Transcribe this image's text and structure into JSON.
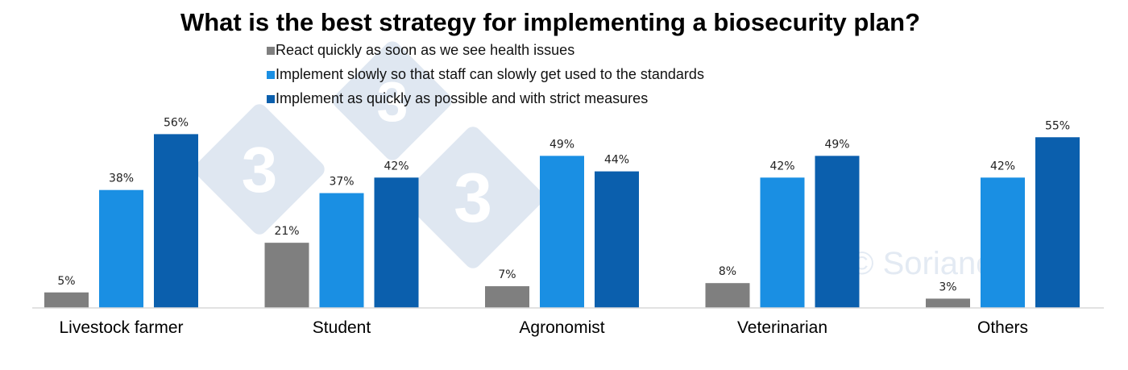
{
  "colors": {
    "react": "#7f7f7f",
    "slowly": "#1a8fe3",
    "quickly": "#0b5fad",
    "axis": "#d9d9d9",
    "watermark": "#dfe7f1"
  },
  "chart_data": {
    "type": "bar",
    "title": "What is the best strategy for implementing a biosecurity plan?",
    "xlabel": "",
    "ylabel": "",
    "ylim": [
      0,
      60
    ],
    "grid": false,
    "legend_position": "top",
    "categories": [
      "Livestock farmer",
      "Student",
      "Agronomist",
      "Veterinarian",
      "Others"
    ],
    "series": [
      {
        "name": "React quickly as soon as we see health issues",
        "values": [
          5,
          21,
          7,
          8,
          3
        ],
        "labels": [
          "5%",
          "21%",
          "7%",
          "8%",
          "3%"
        ]
      },
      {
        "name": "Implement slowly so that staff can slowly get used to the standards",
        "values": [
          38,
          37,
          49,
          42,
          42
        ],
        "labels": [
          "38%",
          "37%",
          "49%",
          "42%",
          "42%"
        ]
      },
      {
        "name": "Implement as quickly as possible and with strict measures",
        "values": [
          56,
          42,
          44,
          49,
          55
        ],
        "labels": [
          "56%",
          "42%",
          "44%",
          "49%",
          "55%"
        ]
      }
    ]
  }
}
